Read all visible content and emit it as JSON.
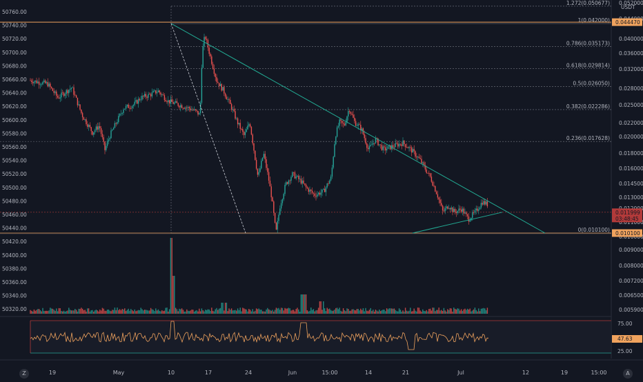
{
  "chart_data": {
    "type": "candlestick",
    "left_axis": {
      "ticks": [
        "50760.00",
        "50740.00",
        "50720.00",
        "50700.00",
        "50680.00",
        "50660.00",
        "50640.00",
        "50620.00",
        "50600.00",
        "50580.00",
        "50560.00",
        "50540.00",
        "50520.00",
        "50500.00",
        "50480.00",
        "50460.00",
        "50440.00",
        "50420.00",
        "50400.00",
        "50380.00",
        "50360.00",
        "50340.00",
        "50320.00"
      ],
      "range": [
        50320,
        50770
      ]
    },
    "right_axis": {
      "unit": "USDT",
      "ticks": [
        "0.052000",
        "0.044000",
        "0.040000",
        "0.036000",
        "0.032000",
        "0.028000",
        "0.025000",
        "0.022000",
        "0.020000",
        "0.018000",
        "0.016000",
        "0.014500",
        "0.013000",
        "0.012000",
        "0.011000",
        "0.010000",
        "0.009000",
        "0.008000",
        "0.007200",
        "0.006500",
        "0.005900"
      ],
      "top_label": "0.052000",
      "bottom_label": "0.0?"
    },
    "price_markers": [
      {
        "label": "0.044470",
        "color": "#f0a35e",
        "level": 50744
      },
      {
        "label": "0.011999",
        "label2": "03:48:45",
        "color": "#b23a3a",
        "level": 50470
      },
      {
        "label": "0.010100",
        "color": "#f0a35e",
        "level": 50440
      }
    ],
    "fibonacci": [
      {
        "ratio": "1.272",
        "label": "1.272(0.050677)",
        "level": 50767
      },
      {
        "ratio": "1",
        "label": "1(0.042000)",
        "level": 50742
      },
      {
        "ratio": "0.786",
        "label": "0.786(0.035173)",
        "level": 50709
      },
      {
        "ratio": "0.618",
        "label": "0.618(0.029814)",
        "level": 50677
      },
      {
        "ratio": "0.5",
        "label": "0.5(0.026050)",
        "level": 50651
      },
      {
        "ratio": "0.382",
        "label": "0.382(0.022286)",
        "level": 50618
      },
      {
        "ratio": "0.236",
        "label": "0.236(0.017628)",
        "level": 50572
      },
      {
        "ratio": "0",
        "label": "0(0.010100)",
        "level": 50440
      }
    ],
    "x_axis": {
      "ticks": [
        "19",
        "May",
        "10",
        "17",
        "24",
        "Jun",
        "15:00",
        "14",
        "21",
        "Jul",
        "12",
        "19",
        "15:00"
      ]
    },
    "rsi": {
      "upper": "75.00",
      "lower": "25.00",
      "value": "47.63"
    },
    "price_path": [
      [
        0,
        50660
      ],
      [
        25,
        50655
      ],
      [
        40,
        50635
      ],
      [
        60,
        50650
      ],
      [
        75,
        50610
      ],
      [
        90,
        50585
      ],
      [
        100,
        50595
      ],
      [
        108,
        50560
      ],
      [
        115,
        50580
      ],
      [
        125,
        50600
      ],
      [
        135,
        50620
      ],
      [
        150,
        50625
      ],
      [
        160,
        50635
      ],
      [
        175,
        50640
      ],
      [
        185,
        50645
      ],
      [
        200,
        50630
      ],
      [
        215,
        50625
      ],
      [
        230,
        50620
      ],
      [
        240,
        50615
      ],
      [
        246,
        50610
      ],
      [
        249,
        50700
      ],
      [
        253,
        50725
      ],
      [
        262,
        50690
      ],
      [
        270,
        50660
      ],
      [
        280,
        50645
      ],
      [
        292,
        50620
      ],
      [
        300,
        50600
      ],
      [
        310,
        50580
      ],
      [
        318,
        50600
      ],
      [
        324,
        50560
      ],
      [
        330,
        50520
      ],
      [
        338,
        50555
      ],
      [
        345,
        50520
      ],
      [
        350,
        50490
      ],
      [
        356,
        50440
      ],
      [
        362,
        50480
      ],
      [
        370,
        50510
      ],
      [
        380,
        50525
      ],
      [
        392,
        50515
      ],
      [
        400,
        50505
      ],
      [
        412,
        50495
      ],
      [
        425,
        50500
      ],
      [
        436,
        50520
      ],
      [
        442,
        50580
      ],
      [
        448,
        50600
      ],
      [
        455,
        50595
      ],
      [
        462,
        50620
      ],
      [
        470,
        50600
      ],
      [
        480,
        50590
      ],
      [
        490,
        50560
      ],
      [
        500,
        50575
      ],
      [
        512,
        50560
      ],
      [
        525,
        50565
      ],
      [
        540,
        50570
      ],
      [
        552,
        50560
      ],
      [
        565,
        50545
      ],
      [
        580,
        50520
      ],
      [
        590,
        50495
      ],
      [
        598,
        50470
      ],
      [
        606,
        50480
      ],
      [
        615,
        50470
      ],
      [
        625,
        50475
      ],
      [
        635,
        50460
      ],
      [
        645,
        50470
      ],
      [
        655,
        50485
      ],
      [
        665,
        50480
      ],
      [
        675,
        50470
      ],
      [
        690,
        50478
      ],
      [
        700,
        50475
      ],
      [
        708,
        50468
      ]
    ]
  }
}
